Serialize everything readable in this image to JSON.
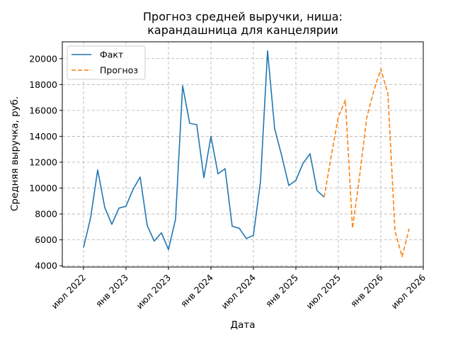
{
  "chart_data": {
    "type": "line",
    "title": "Прогноз средней выручки, ниша:\nкарандашница для канцелярии",
    "xlabel": "Дата",
    "ylabel": "Средняя выручка, руб.",
    "grid": true,
    "legend_position": "top-left",
    "x_tick_labels": [
      {
        "date": "2022-07",
        "label": "июл 2022"
      },
      {
        "date": "2023-01",
        "label": "янв 2023"
      },
      {
        "date": "2023-07",
        "label": "июл 2023"
      },
      {
        "date": "2024-01",
        "label": "янв 2024"
      },
      {
        "date": "2024-07",
        "label": "июл 2024"
      },
      {
        "date": "2025-01",
        "label": "янв 2025"
      },
      {
        "date": "2025-07",
        "label": "июл 2025"
      },
      {
        "date": "2026-01",
        "label": "янв 2026"
      },
      {
        "date": "2026-07",
        "label": "июл 2026"
      }
    ],
    "xlim": [
      "2022-04",
      "2026-07"
    ],
    "ylim": [
      3900,
      21300
    ],
    "y_ticks": [
      4000,
      6000,
      8000,
      10000,
      12000,
      14000,
      16000,
      18000,
      20000
    ],
    "series": [
      {
        "name": "Факт",
        "color": "#1f77b4",
        "style": "solid",
        "x": [
          "2022-07",
          "2022-08",
          "2022-09",
          "2022-10",
          "2022-11",
          "2022-12",
          "2023-01",
          "2023-02",
          "2023-03",
          "2023-04",
          "2023-05",
          "2023-06",
          "2023-07",
          "2023-08",
          "2023-09",
          "2023-10",
          "2023-11",
          "2023-12",
          "2024-01",
          "2024-02",
          "2024-03",
          "2024-04",
          "2024-05",
          "2024-06",
          "2024-07",
          "2024-08",
          "2024-09",
          "2024-10",
          "2024-11",
          "2024-12",
          "2025-01",
          "2025-02",
          "2025-03",
          "2025-04",
          "2025-05"
        ],
        "values": [
          5400,
          7700,
          11400,
          8500,
          7200,
          8450,
          8600,
          9900,
          10850,
          7100,
          5900,
          6550,
          5250,
          7600,
          17900,
          15000,
          14900,
          10800,
          14000,
          11100,
          11500,
          7050,
          6900,
          6100,
          6350,
          10500,
          20600,
          14600,
          12500,
          10200,
          10600,
          11900,
          12650,
          9800,
          9300
        ]
      },
      {
        "name": "Прогноз",
        "color": "#ff7f0e",
        "style": "dashed",
        "x": [
          "2025-05",
          "2025-06",
          "2025-07",
          "2025-08",
          "2025-09",
          "2025-10",
          "2025-11",
          "2025-12",
          "2026-01",
          "2026-02",
          "2026-03",
          "2026-04",
          "2026-05"
        ],
        "values": [
          9300,
          12500,
          15500,
          16800,
          6900,
          10900,
          15400,
          17500,
          19200,
          17300,
          6700,
          4700,
          6850
        ]
      }
    ]
  }
}
